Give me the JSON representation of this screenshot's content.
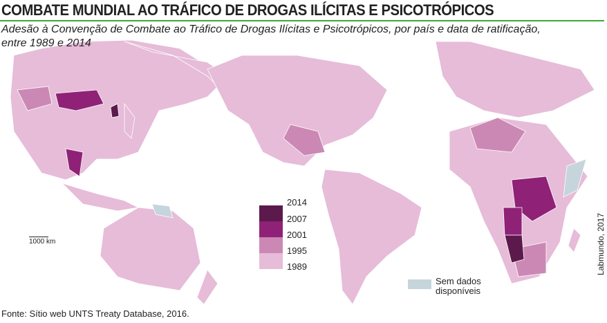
{
  "title": "COMBATE MUNDIAL AO TRÁFICO DE DROGAS ILÍCITAS E PSICOTRÓPICOS",
  "subtitle": "Adesão à Convenção de Combate ao Tráfico de Drogas Ilícitas e Psicotrópicos, por país e data de ratificação, entre 1989 e 2014",
  "legend": {
    "labels": [
      "2014",
      "2007",
      "2001",
      "1995",
      "1989"
    ],
    "colors": [
      "#5c1a4c",
      "#8f2277",
      "#cc88b4",
      "#e6bcd9"
    ],
    "no_data_label": "Sem dados disponíveis",
    "no_data_color": "#c6d5dc"
  },
  "scale": "1000 km",
  "source": "Fonte: Sítio web UNTS Treaty Database, 2016.",
  "credit": "Labmundo, 2017",
  "accent": "#3aaa35"
}
